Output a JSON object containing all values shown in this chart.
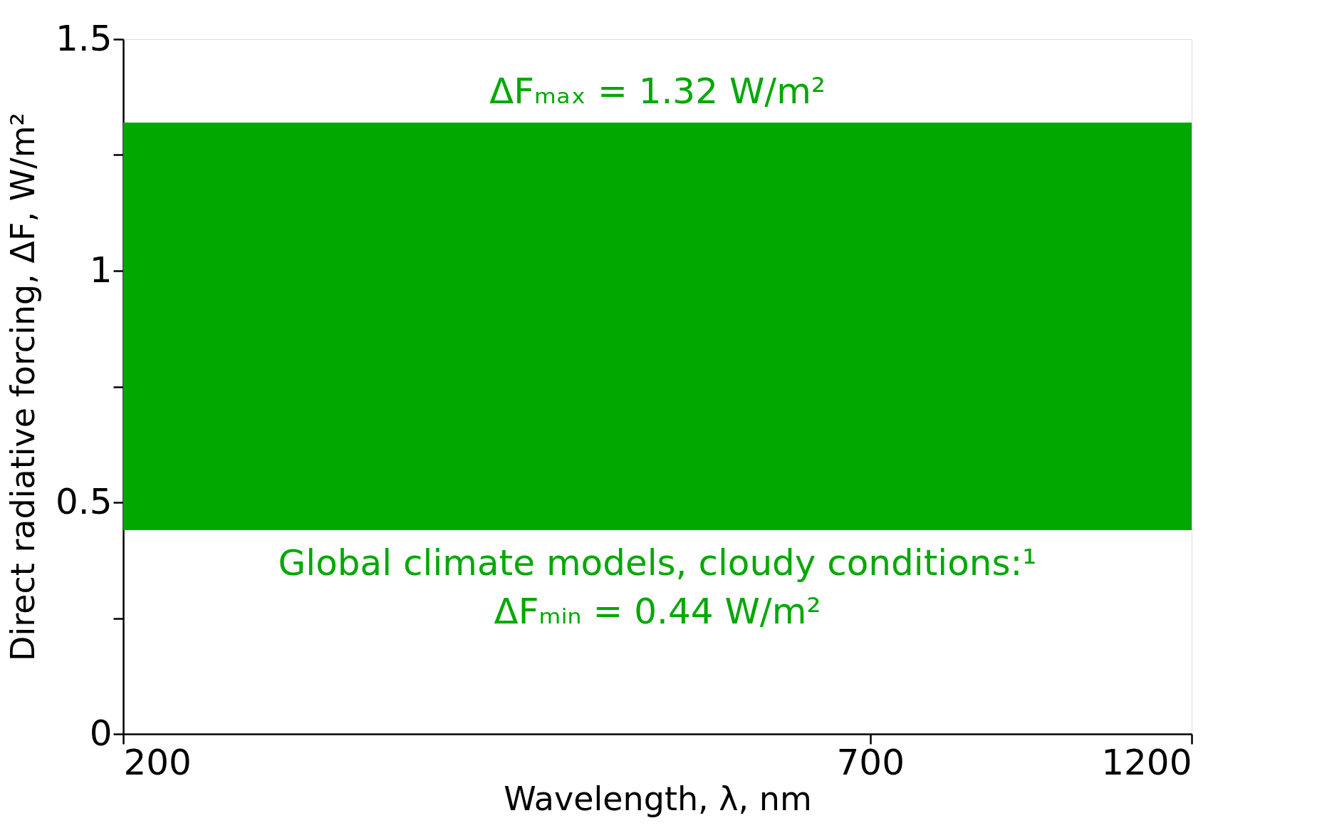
{
  "chart_data": {
    "type": "line",
    "xlabel": "Wavelength, λ, nm",
    "ylabel": "Direct radiative forcing, ΔF, W/m²",
    "log": "x",
    "xlim": [
      200,
      1200
    ],
    "xticks": [
      200,
      700,
      1200
    ],
    "ylim": [
      0,
      1.5
    ],
    "yticks": [
      0,
      {
        "value": 0.25,
        "label": null
      },
      0.5,
      {
        "value": 0.75,
        "label": null
      },
      1,
      {
        "value": 1.25,
        "label": null
      },
      1.5
    ],
    "bands": [
      {
        "axis": "y",
        "from": 0.44,
        "to": 1.32,
        "color": "#00a800"
      }
    ],
    "annotations": [
      "ΔFₘₐₓ = 1.32 W/m²",
      "Global climate models, cloudy conditions:¹",
      "ΔFₘᵢₙ = 0.44 W/m²"
    ]
  }
}
